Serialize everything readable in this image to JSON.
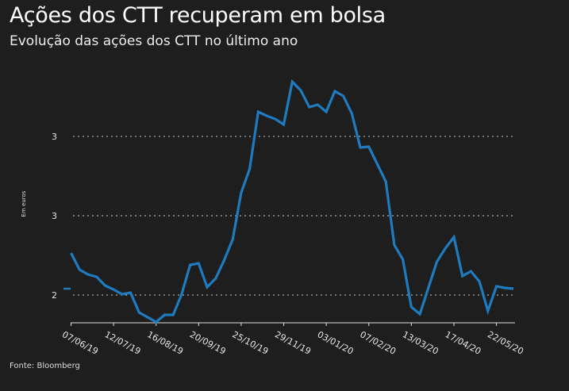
{
  "title": "Ações dos CTT recuperam em bolsa",
  "subtitle": "Evolução das ações dos CTT no último ano",
  "source": "Fonte: Bloomberg",
  "chart_data": {
    "type": "line",
    "title": "Ações dos CTT recuperam em bolsa",
    "subtitle": "Evolução das ações dos CTT no último ano",
    "ylabel": "Em euros",
    "xlabel": "",
    "ylim": [
      1.83,
      3.4
    ],
    "grid": true,
    "line_color": "#1f7bbf",
    "y_ticks": [
      {
        "value": 3.0,
        "label": "3"
      },
      {
        "value": 2.5,
        "label": "3"
      },
      {
        "value": 2.0,
        "label": "2"
      }
    ],
    "x_ticks": [
      "07/06/19",
      "12/07/19",
      "16/08/19",
      "20/09/19",
      "25/10/19",
      "29/11/19",
      "03/01/20",
      "07/02/20",
      "13/03/20",
      "17/04/20",
      "22/05/20"
    ],
    "x": [
      "07/06/19",
      "14/06/19",
      "21/06/19",
      "28/06/19",
      "05/07/19",
      "12/07/19",
      "19/07/19",
      "26/07/19",
      "02/08/19",
      "09/08/19",
      "16/08/19",
      "23/08/19",
      "30/08/19",
      "06/09/19",
      "13/09/19",
      "20/09/19",
      "27/09/19",
      "04/10/19",
      "11/10/19",
      "18/10/19",
      "25/10/19",
      "01/11/19",
      "08/11/19",
      "15/11/19",
      "22/11/19",
      "29/11/19",
      "06/12/19",
      "13/12/19",
      "20/12/19",
      "27/12/19",
      "03/01/20",
      "10/01/20",
      "17/01/20",
      "24/01/20",
      "31/01/20",
      "07/02/20",
      "14/02/20",
      "21/02/20",
      "28/02/20",
      "06/03/20",
      "13/03/20",
      "20/03/20",
      "27/03/20",
      "03/04/20",
      "10/04/20",
      "17/04/20",
      "24/04/20",
      "01/05/20",
      "08/05/20",
      "15/05/20",
      "22/05/20",
      "29/05/20",
      "05/06/20"
    ],
    "series": [
      {
        "values": [
          2.265,
          2.16,
          2.13,
          2.115,
          2.06,
          2.035,
          2.005,
          2.015,
          1.89,
          1.86,
          1.83,
          1.875,
          1.875,
          2.005,
          2.19,
          2.2,
          2.05,
          2.105,
          2.22,
          2.35,
          2.645,
          2.795,
          3.155,
          3.13,
          3.11,
          3.075,
          3.345,
          3.29,
          3.185,
          3.2,
          3.155,
          3.285,
          3.255,
          3.145,
          2.93,
          2.935,
          2.825,
          2.715,
          2.315,
          2.225,
          1.925,
          1.88,
          2.045,
          2.21,
          2.295,
          2.365,
          2.12,
          2.15,
          2.085,
          1.9,
          2.055,
          2.045,
          2.04
        ]
      }
    ]
  }
}
